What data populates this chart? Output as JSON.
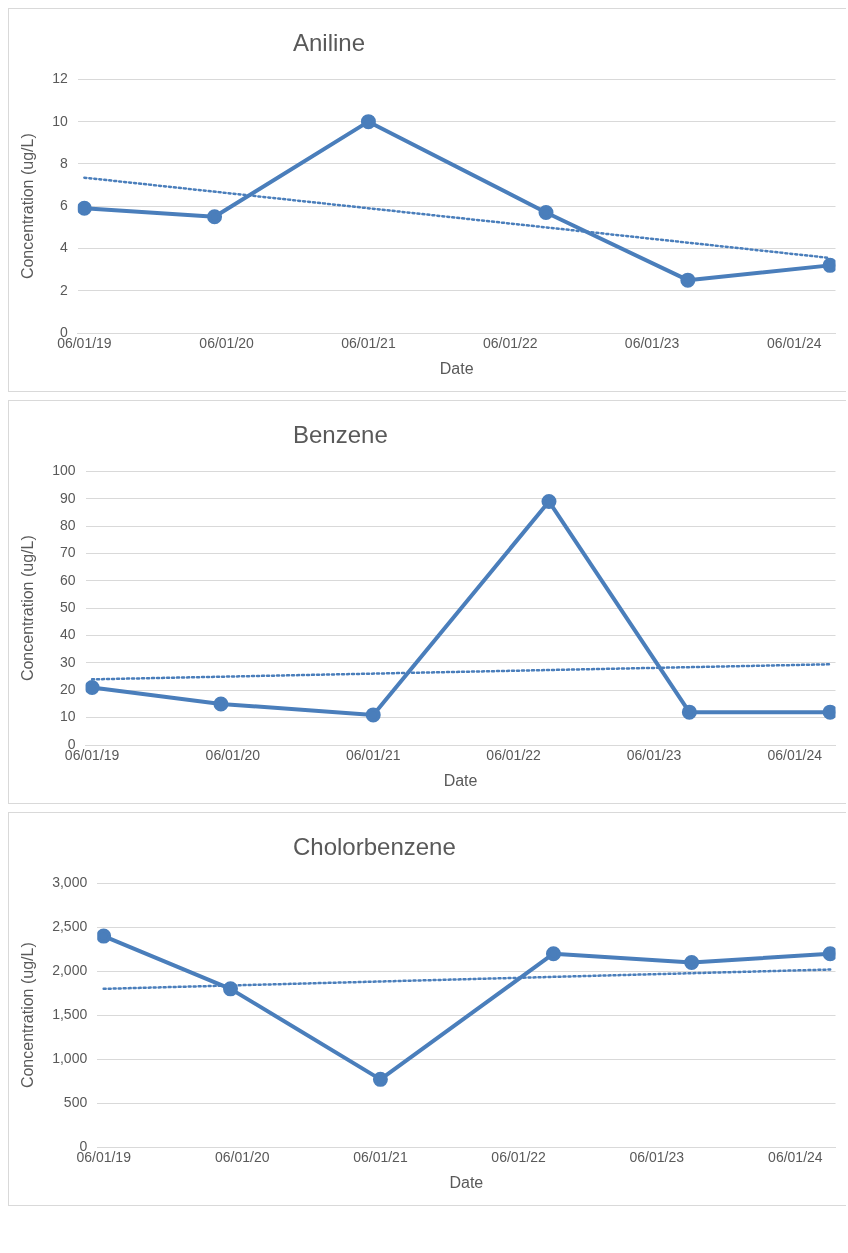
{
  "chart_data": [
    {
      "type": "line",
      "title": "Aniline",
      "xlabel": "Date",
      "ylabel": "Concentration (ug/L)",
      "grid": "y",
      "legend": false,
      "x": [
        "2019-06-01",
        "2020-05-01",
        "2021-06-01",
        "2022-09-01",
        "2023-09-01",
        "2024-09-01"
      ],
      "xlim": [
        "2019-05-15",
        "2024-09-15"
      ],
      "xticks": [
        {
          "value": "2019-06-01",
          "label": "06/01/19"
        },
        {
          "value": "2020-06-01",
          "label": "06/01/20"
        },
        {
          "value": "2021-06-01",
          "label": "06/01/21"
        },
        {
          "value": "2022-06-01",
          "label": "06/01/22"
        },
        {
          "value": "2023-06-01",
          "label": "06/01/23"
        },
        {
          "value": "2024-06-01",
          "label": "06/01/24"
        }
      ],
      "ylim": [
        0,
        12
      ],
      "yticks": [
        0,
        2,
        4,
        6,
        8,
        10,
        12
      ],
      "series": [
        {
          "color": "#4a7ebb",
          "marker": "circle",
          "line_style": "solid",
          "values": [
            5.9,
            5.5,
            10,
            5.7,
            2.5,
            3.2
          ]
        },
        {
          "type": "line",
          "color": "#4a7ebb",
          "marker": "none",
          "line_style": "dotted",
          "x": [
            "2019-06-01",
            "2024-09-01"
          ],
          "values": [
            7.35,
            3.55
          ]
        }
      ]
    },
    {
      "type": "line",
      "title": "Benzene",
      "xlabel": "Date",
      "ylabel": "Concentration (ug/L)",
      "grid": "y",
      "legend": false,
      "x": [
        "2019-06-01",
        "2020-05-01",
        "2021-06-01",
        "2022-09-01",
        "2023-09-01",
        "2024-09-01"
      ],
      "xlim": [
        "2019-05-15",
        "2024-09-15"
      ],
      "xticks": [
        {
          "value": "2019-06-01",
          "label": "06/01/19"
        },
        {
          "value": "2020-06-01",
          "label": "06/01/20"
        },
        {
          "value": "2021-06-01",
          "label": "06/01/21"
        },
        {
          "value": "2022-06-01",
          "label": "06/01/22"
        },
        {
          "value": "2023-06-01",
          "label": "06/01/23"
        },
        {
          "value": "2024-06-01",
          "label": "06/01/24"
        }
      ],
      "ylim": [
        0,
        100
      ],
      "yticks": [
        0,
        10,
        20,
        30,
        40,
        50,
        60,
        70,
        80,
        90,
        100
      ],
      "series": [
        {
          "color": "#4a7ebb",
          "marker": "circle",
          "line_style": "solid",
          "values": [
            21,
            15,
            11,
            89,
            12,
            12
          ]
        },
        {
          "type": "line",
          "color": "#4a7ebb",
          "marker": "none",
          "line_style": "dotted",
          "x": [
            "2019-06-01",
            "2024-09-01"
          ],
          "values": [
            24,
            29.5
          ]
        }
      ]
    },
    {
      "type": "line",
      "title": "Cholorbenzene",
      "xlabel": "Date",
      "ylabel": "Concentration (ug/L)",
      "grid": "y",
      "legend": false,
      "x": [
        "2019-06-01",
        "2020-05-01",
        "2021-06-01",
        "2022-09-01",
        "2023-09-01",
        "2024-09-01"
      ],
      "xlim": [
        "2019-05-15",
        "2024-09-15"
      ],
      "xticks": [
        {
          "value": "2019-06-01",
          "label": "06/01/19"
        },
        {
          "value": "2020-06-01",
          "label": "06/01/20"
        },
        {
          "value": "2021-06-01",
          "label": "06/01/21"
        },
        {
          "value": "2022-06-01",
          "label": "06/01/22"
        },
        {
          "value": "2023-06-01",
          "label": "06/01/23"
        },
        {
          "value": "2024-06-01",
          "label": "06/01/24"
        }
      ],
      "ylim": [
        0,
        3000
      ],
      "yticks": [
        0,
        500,
        {
          "value": 1000,
          "label": "1,000"
        },
        {
          "value": 1500,
          "label": "1,500"
        },
        {
          "value": 2000,
          "label": "2,000"
        },
        {
          "value": 2500,
          "label": "2,500"
        },
        {
          "value": 3000,
          "label": "3,000"
        }
      ],
      "series": [
        {
          "color": "#4a7ebb",
          "marker": "circle",
          "line_style": "solid",
          "values": [
            2400,
            1800,
            770,
            2200,
            2100,
            2200
          ]
        },
        {
          "type": "line",
          "color": "#4a7ebb",
          "marker": "none",
          "line_style": "dotted",
          "x": [
            "2019-06-01",
            "2024-09-01"
          ],
          "values": [
            1800,
            2020
          ]
        }
      ]
    }
  ]
}
